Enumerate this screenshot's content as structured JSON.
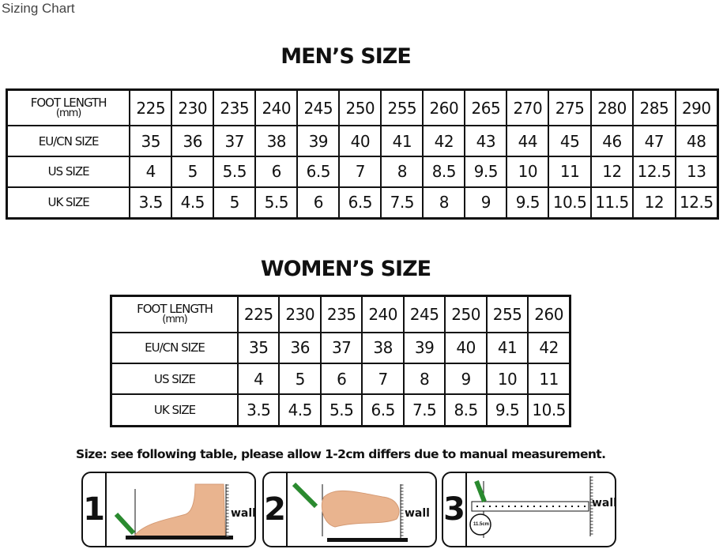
{
  "page_title": "Sizing Chart",
  "men": {
    "title": "MEN’S SIZE",
    "header_label": "FOOT LENGTH",
    "header_unit": "(mm)",
    "foot_length": [
      "225",
      "230",
      "235",
      "240",
      "245",
      "250",
      "255",
      "260",
      "265",
      "270",
      "275",
      "280",
      "285",
      "290"
    ],
    "rows": [
      {
        "label": "EU/CN SIZE",
        "values": [
          "35",
          "36",
          "37",
          "38",
          "39",
          "40",
          "41",
          "42",
          "43",
          "44",
          "45",
          "46",
          "47",
          "48"
        ]
      },
      {
        "label": "US SIZE",
        "values": [
          "4",
          "5",
          "5.5",
          "6",
          "6.5",
          "7",
          "8",
          "8.5",
          "9.5",
          "10",
          "11",
          "12",
          "12.5",
          "13"
        ]
      },
      {
        "label": "UK SIZE",
        "values": [
          "3.5",
          "4.5",
          "5",
          "5.5",
          "6",
          "6.5",
          "7.5",
          "8",
          "9",
          "9.5",
          "10.5",
          "11.5",
          "12",
          "12.5"
        ]
      }
    ]
  },
  "women": {
    "title": "WOMEN’S SIZE",
    "header_label": "FOOT LENGTH",
    "header_unit": "(mm)",
    "foot_length": [
      "225",
      "230",
      "235",
      "240",
      "245",
      "250",
      "255",
      "260"
    ],
    "rows": [
      {
        "label": "EU/CN SIZE",
        "values": [
          "35",
          "36",
          "37",
          "38",
          "39",
          "40",
          "41",
          "42"
        ]
      },
      {
        "label": "US SIZE",
        "values": [
          "4",
          "5",
          "6",
          "7",
          "8",
          "9",
          "10",
          "11"
        ]
      },
      {
        "label": "UK SIZE",
        "values": [
          "3.5",
          "4.5",
          "5.5",
          "6.5",
          "7.5",
          "8.5",
          "9.5",
          "10.5"
        ]
      }
    ]
  },
  "instructions": "Size: see following table, please allow 1-2cm differs due to manual measurement.",
  "steps": [
    {
      "number": "1",
      "wall_label": "wall"
    },
    {
      "number": "2",
      "wall_label": "wall"
    },
    {
      "number": "3",
      "wall_label": "wall",
      "measure_label": "11.5cm"
    }
  ],
  "colors": {
    "skin": "#e9b48f",
    "pencil": "#2a8a2f"
  }
}
